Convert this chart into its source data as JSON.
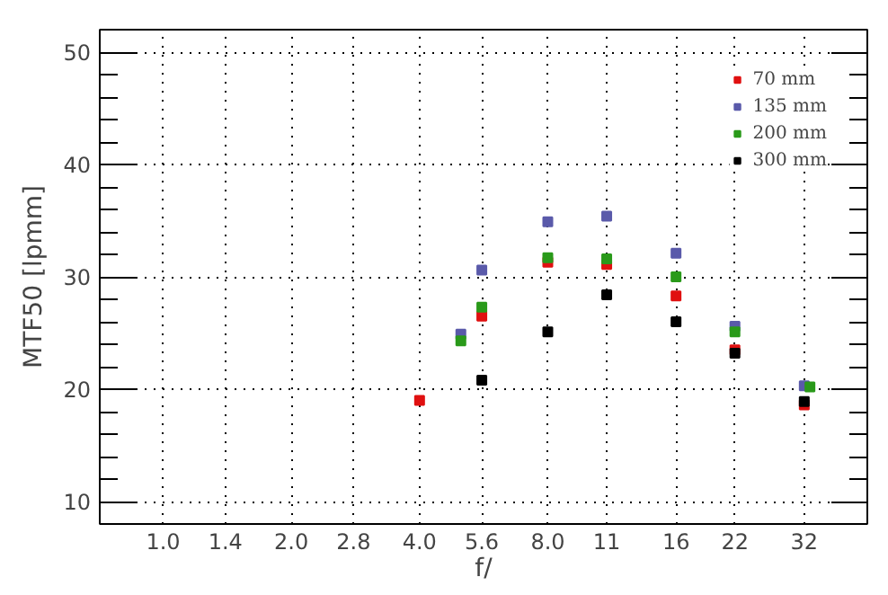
{
  "chart_data": {
    "type": "scatter",
    "xlabel": "f/",
    "ylabel": "MTF50 [lpmm]",
    "log": "x",
    "xlim": [
      0.71,
      45
    ],
    "ylim": [
      8,
      52
    ],
    "xticks": [
      {
        "value": 1,
        "label": "1.0"
      },
      1.4,
      {
        "value": 2,
        "label": "2.0"
      },
      2.8,
      {
        "value": 4,
        "label": "4.0"
      },
      5.6,
      {
        "value": 8,
        "label": "8.0"
      },
      11,
      16,
      22,
      32
    ],
    "yticks": [
      10,
      20,
      30,
      40,
      50
    ],
    "grid": true,
    "legend": "top right",
    "marker": "square",
    "series": [
      {
        "name": "70 mm",
        "color": "#e01010",
        "x": [
          4.0,
          5.6,
          8.0,
          11,
          16,
          22,
          32
        ],
        "values": [
          19.0,
          26.5,
          31.3,
          31.1,
          28.3,
          23.5,
          18.6
        ]
      },
      {
        "name": "135 mm",
        "color": "#5a5aaa",
        "x": [
          5.0,
          5.6,
          8.0,
          11,
          16,
          22,
          32
        ],
        "values": [
          24.9,
          30.6,
          34.9,
          35.4,
          32.1,
          25.6,
          20.3
        ]
      },
      {
        "name": "200 mm",
        "color": "#2a9a1a",
        "x": [
          5.0,
          5.6,
          8.0,
          11,
          16,
          22,
          33
        ],
        "values": [
          24.3,
          27.3,
          31.7,
          31.6,
          30.0,
          25.1,
          20.2
        ]
      },
      {
        "name": "300 mm",
        "color": "#000000",
        "x": [
          5.6,
          8.0,
          11,
          16,
          22,
          32
        ],
        "values": [
          20.8,
          25.1,
          28.4,
          26.0,
          23.2,
          18.9
        ]
      }
    ]
  }
}
